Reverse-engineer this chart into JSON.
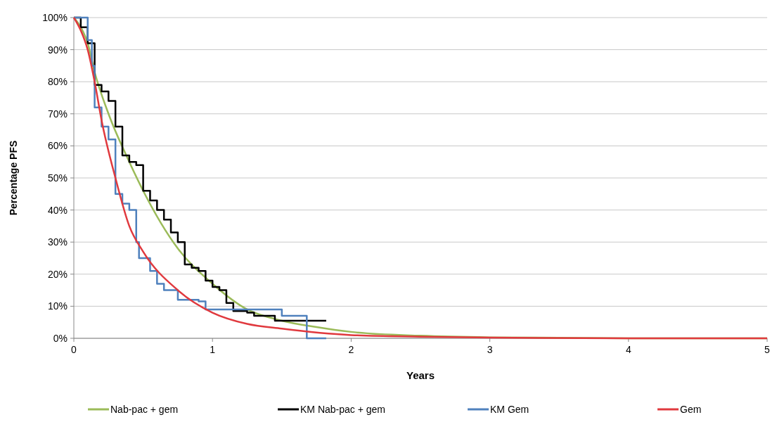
{
  "chart_data": {
    "type": "line",
    "xlabel": "Years",
    "ylabel": "Percentage PFS",
    "xlim": [
      0,
      5
    ],
    "xticks": [
      0,
      1,
      2,
      3,
      4,
      5
    ],
    "ylim": [
      0,
      100
    ],
    "yticks": [
      {
        "value": 0,
        "label": "0%"
      },
      {
        "value": 10,
        "label": "10%"
      },
      {
        "value": 20,
        "label": "20%"
      },
      {
        "value": 30,
        "label": "30%"
      },
      {
        "value": 40,
        "label": "40%"
      },
      {
        "value": 50,
        "label": "50%"
      },
      {
        "value": 60,
        "label": "60%"
      },
      {
        "value": 70,
        "label": "70%"
      },
      {
        "value": 80,
        "label": "80%"
      },
      {
        "value": 90,
        "label": "90%"
      },
      {
        "value": 100,
        "label": "100%"
      }
    ],
    "grid": "y",
    "legend": "bottom",
    "marker": "none",
    "line_style": "solid",
    "series": [
      {
        "name": "Nab-pac + gem",
        "color": "#9bbb59",
        "x": [
          0,
          0.05,
          0.1,
          0.15,
          0.25,
          0.4,
          0.5,
          0.75,
          1,
          1.25,
          1.5,
          1.75,
          2,
          2.5,
          3,
          4,
          5
        ],
        "values": [
          100,
          97,
          92,
          83,
          70,
          55,
          46,
          28,
          17,
          9,
          5.5,
          3.5,
          2,
          0.8,
          0.3,
          0,
          0
        ]
      },
      {
        "name": "KM Nab-pac + gem",
        "color": "#000000",
        "type": "step",
        "x": [
          0,
          0.05,
          0.1,
          0.15,
          0.2,
          0.25,
          0.3,
          0.35,
          0.4,
          0.45,
          0.5,
          0.55,
          0.6,
          0.65,
          0.7,
          0.75,
          0.8,
          0.85,
          0.9,
          0.95,
          1,
          1.05,
          1.1,
          1.15,
          1.25,
          1.3,
          1.45,
          1.82
        ],
        "values": [
          100,
          97,
          92,
          79,
          77,
          74,
          66,
          57,
          55,
          54,
          46,
          43,
          40,
          37,
          33,
          30,
          23,
          22,
          21,
          18,
          16,
          15,
          11,
          8.5,
          8,
          7,
          5.5,
          5.5
        ]
      },
      {
        "name": "KM Gem",
        "color": "#4f81bd",
        "type": "step",
        "x": [
          0,
          0.1,
          0.13,
          0.15,
          0.2,
          0.25,
          0.3,
          0.35,
          0.4,
          0.45,
          0.47,
          0.55,
          0.6,
          0.65,
          0.75,
          0.9,
          0.95,
          1.5,
          1.68,
          1.82
        ],
        "values": [
          100,
          93,
          85,
          72,
          66,
          62,
          45,
          42,
          40,
          30,
          25,
          21,
          17,
          15,
          12,
          11.5,
          9,
          7,
          0,
          0
        ]
      },
      {
        "name": "Gem",
        "color": "#e0393e",
        "x": [
          0,
          0.05,
          0.1,
          0.15,
          0.2,
          0.3,
          0.4,
          0.5,
          0.75,
          1,
          1.25,
          1.5,
          2,
          2.5,
          3,
          4,
          5
        ],
        "values": [
          100,
          96,
          90,
          80,
          68,
          50,
          35,
          27,
          15,
          8,
          4.5,
          3,
          1,
          0.5,
          0.2,
          0,
          0
        ]
      }
    ]
  }
}
